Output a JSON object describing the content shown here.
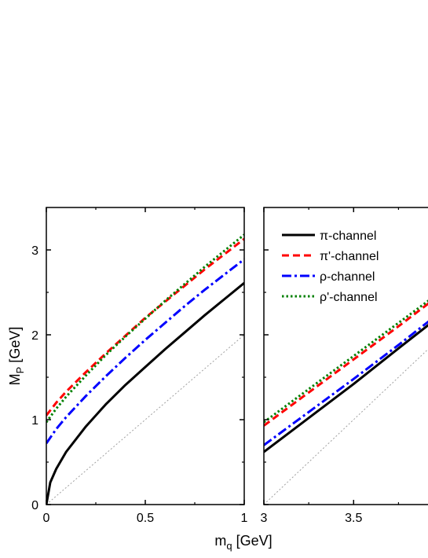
{
  "chart_data": {
    "type": "line",
    "xlabel": "m",
    "xlabel_sub": "q",
    "xlabel_unit": " [GeV]",
    "ylabel": "M",
    "ylabel_sub": "P",
    "ylabel_unit": " [GeV]",
    "ylim": [
      0,
      3.5
    ],
    "yticks": [
      0,
      1,
      2,
      3
    ],
    "yticklabels": [
      "0",
      "1",
      "2",
      "3"
    ],
    "legend_position": "top-left of right panel",
    "panels": [
      {
        "xlim": [
          0,
          1
        ],
        "xticks": [
          0,
          0.5,
          1
        ],
        "xticklabels": [
          "0",
          "0.5",
          "1"
        ]
      },
      {
        "xlim": [
          3,
          3.98
        ],
        "xticks": [
          3,
          3.5
        ],
        "xticklabels": [
          "3",
          "3.5"
        ]
      }
    ],
    "series": [
      {
        "name": "π-channel",
        "color": "#000000",
        "style": "solid",
        "panel1": {
          "x": [
            0,
            0.02,
            0.05,
            0.1,
            0.2,
            0.3,
            0.4,
            0.5,
            0.6,
            0.7,
            0.8,
            0.9,
            1.0
          ],
          "y": [
            0,
            0.26,
            0.42,
            0.62,
            0.92,
            1.18,
            1.41,
            1.62,
            1.83,
            2.03,
            2.23,
            2.42,
            2.61
          ]
        },
        "panel2": {
          "x": [
            3.0,
            3.25,
            3.5,
            3.75,
            3.98
          ],
          "y": [
            0.62,
            1.02,
            1.42,
            1.84,
            2.22
          ]
        }
      },
      {
        "name": "π'-channel",
        "color": "#ff0000",
        "style": "dashed",
        "panel1": {
          "x": [
            0,
            0.05,
            0.1,
            0.2,
            0.3,
            0.4,
            0.5,
            0.6,
            0.7,
            0.8,
            0.9,
            1.0
          ],
          "y": [
            1.05,
            1.2,
            1.33,
            1.56,
            1.78,
            1.99,
            2.2,
            2.39,
            2.58,
            2.77,
            2.95,
            3.13
          ]
        },
        "panel2": {
          "x": [
            3.0,
            3.25,
            3.5,
            3.75,
            3.98
          ],
          "y": [
            0.93,
            1.32,
            1.71,
            2.1,
            2.47
          ]
        }
      },
      {
        "name": "ρ-channel",
        "color": "#0000ff",
        "style": "dashdot",
        "panel1": {
          "x": [
            0,
            0.05,
            0.1,
            0.2,
            0.3,
            0.4,
            0.5,
            0.6,
            0.7,
            0.8,
            0.9,
            1.0
          ],
          "y": [
            0.72,
            0.89,
            1.03,
            1.28,
            1.51,
            1.73,
            1.94,
            2.14,
            2.34,
            2.53,
            2.71,
            2.89
          ]
        },
        "panel2": {
          "x": [
            3.0,
            3.25,
            3.5,
            3.75,
            3.98
          ],
          "y": [
            0.7,
            1.09,
            1.48,
            1.88,
            2.26
          ]
        }
      },
      {
        "name": "ρ'-channel",
        "color": "#008000",
        "style": "dotted",
        "panel1": {
          "x": [
            0,
            0.05,
            0.1,
            0.2,
            0.3,
            0.4,
            0.5,
            0.6,
            0.7,
            0.8,
            0.9,
            1.0
          ],
          "y": [
            0.97,
            1.13,
            1.27,
            1.52,
            1.76,
            1.98,
            2.19,
            2.4,
            2.6,
            2.8,
            2.99,
            3.18
          ]
        },
        "panel2": {
          "x": [
            3.0,
            3.25,
            3.5,
            3.75,
            3.98
          ],
          "y": [
            0.97,
            1.36,
            1.75,
            2.14,
            2.5
          ]
        }
      }
    ],
    "reference_line": {
      "color": "#a0a0a0",
      "style": "dotted",
      "panel1": {
        "x": [
          0,
          1
        ],
        "y": [
          0,
          2
        ]
      },
      "panel2": {
        "x": [
          3,
          3.98
        ],
        "y": [
          0,
          1.96
        ]
      }
    }
  }
}
